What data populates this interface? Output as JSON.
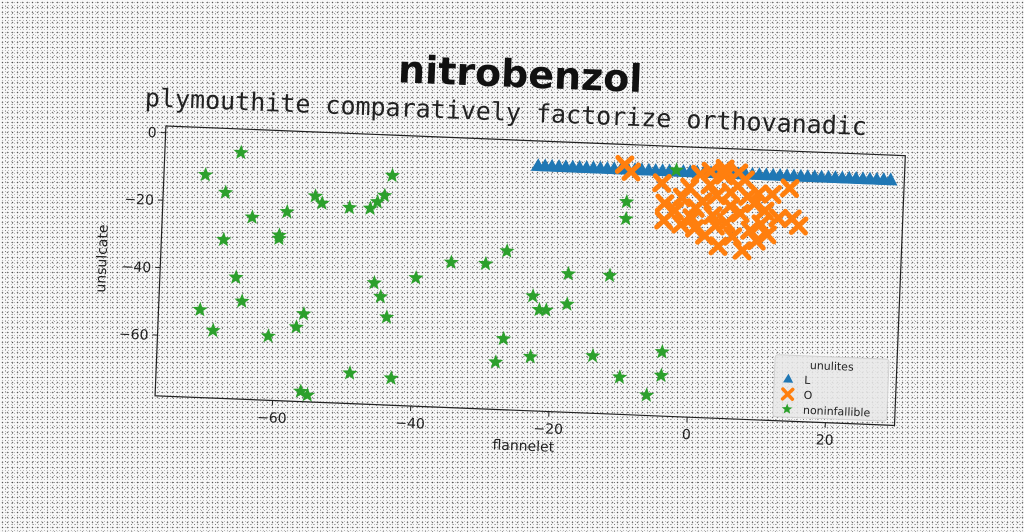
{
  "title": "nitrobenzol",
  "subtitle": "plymouthite comparatively factorize orthovanadic",
  "chart_data": {
    "type": "scatter",
    "xlabel": "flannelet",
    "ylabel": "unsulcate",
    "xlim": [
      -77,
      30
    ],
    "ylim": [
      -78,
      2
    ],
    "xticks": [
      -60,
      -40,
      -20,
      0,
      20
    ],
    "yticks": [
      0,
      -20,
      -40,
      -60
    ],
    "grid": false,
    "legend": {
      "title": "unulites",
      "position": "lower-right"
    },
    "series": [
      {
        "name": "L",
        "marker": "triangle",
        "color": "#1f77b4",
        "points": [
          [
            -23,
            -5.5
          ],
          [
            -22,
            -5.5
          ],
          [
            -21,
            -5.5
          ],
          [
            -20,
            -5.5
          ],
          [
            -19,
            -5.5
          ],
          [
            -18,
            -5.5
          ],
          [
            -17,
            -5.5
          ],
          [
            -16,
            -5.5
          ],
          [
            -15,
            -5.5
          ],
          [
            -14,
            -5.5
          ],
          [
            -13,
            -5.5
          ],
          [
            -12,
            -5.5
          ],
          [
            -11,
            -5.5
          ],
          [
            -10,
            -5.5
          ],
          [
            -9,
            -5.5
          ],
          [
            -8,
            -5.5
          ],
          [
            -7,
            -5.5
          ],
          [
            -6,
            -5.5
          ],
          [
            -5,
            -5.5
          ],
          [
            -4,
            -5.5
          ],
          [
            -3,
            -5.5
          ],
          [
            -2,
            -5.5
          ],
          [
            -1,
            -5.5
          ],
          [
            0,
            -5.5
          ],
          [
            1,
            -5.5
          ],
          [
            2,
            -5.5
          ],
          [
            3,
            -5.5
          ],
          [
            4,
            -5.5
          ],
          [
            5,
            -5.5
          ],
          [
            6,
            -5.5
          ],
          [
            7,
            -5.5
          ],
          [
            8,
            -5.5
          ],
          [
            9,
            -5.5
          ],
          [
            10,
            -5.5
          ],
          [
            11,
            -5.5
          ],
          [
            12,
            -5.5
          ],
          [
            13,
            -5.5
          ],
          [
            14,
            -5.5
          ],
          [
            15,
            -5.5
          ],
          [
            16,
            -5.5
          ],
          [
            17,
            -5.5
          ],
          [
            18,
            -5.5
          ],
          [
            19,
            -5.5
          ],
          [
            20,
            -5.5
          ],
          [
            21,
            -5.5
          ],
          [
            22,
            -5.5
          ],
          [
            23,
            -5.5
          ],
          [
            24,
            -5.5
          ],
          [
            25,
            -5.5
          ],
          [
            26,
            -5.5
          ],
          [
            27,
            -5.5
          ],
          [
            28,
            -5.5
          ]
        ]
      },
      {
        "name": "O",
        "marker": "x",
        "color": "#ff7f0e",
        "points": [
          [
            -10.5,
            -4
          ],
          [
            -9.5,
            -6
          ],
          [
            -5,
            -9
          ],
          [
            -4.5,
            -15
          ],
          [
            -4.5,
            -20
          ],
          [
            -3,
            -17
          ],
          [
            -2,
            -13
          ],
          [
            -1,
            -10
          ],
          [
            -0.5,
            -19
          ],
          [
            0,
            -22
          ],
          [
            0.5,
            -6
          ],
          [
            1,
            -14
          ],
          [
            1.5,
            -24
          ],
          [
            2,
            -9
          ],
          [
            2.5,
            -18
          ],
          [
            3,
            -12
          ],
          [
            3.5,
            -27
          ],
          [
            4,
            -6
          ],
          [
            4.5,
            -20
          ],
          [
            5,
            -15
          ],
          [
            5.5,
            -24
          ],
          [
            6,
            -9
          ],
          [
            6.5,
            -17
          ],
          [
            7,
            -28
          ],
          [
            7.5,
            -12
          ],
          [
            8,
            -22
          ],
          [
            8.5,
            -14
          ],
          [
            9,
            -25
          ],
          [
            9.5,
            -20
          ],
          [
            10,
            -16
          ],
          [
            10.5,
            -23
          ],
          [
            11,
            -11
          ],
          [
            12,
            -18
          ],
          [
            13.5,
            -9
          ],
          [
            14,
            -18
          ],
          [
            15,
            -20
          ],
          [
            2,
            -5
          ],
          [
            4,
            -4
          ],
          [
            6,
            -5
          ],
          [
            0,
            -16
          ],
          [
            3,
            -21
          ],
          [
            5,
            -11
          ],
          [
            7,
            -7
          ],
          [
            -2,
            -21
          ],
          [
            9,
            -11
          ]
        ]
      },
      {
        "name": "noninfallible",
        "marker": "star",
        "color": "#2ca02c",
        "points": [
          [
            -71,
            -12
          ],
          [
            -66,
            -5
          ],
          [
            -68,
            -17
          ],
          [
            -64,
            -24
          ],
          [
            -68,
            -31
          ],
          [
            -66,
            -42
          ],
          [
            -65,
            -49
          ],
          [
            -60,
            -30
          ],
          [
            -60,
            -29
          ],
          [
            -59,
            -22
          ],
          [
            -71,
            -52
          ],
          [
            -69,
            -58
          ],
          [
            -61,
            -59
          ],
          [
            -57,
            -56
          ],
          [
            -56,
            -52
          ],
          [
            -55,
            -17
          ],
          [
            -54,
            -19
          ],
          [
            -50,
            -20
          ],
          [
            -47,
            -20
          ],
          [
            -46,
            -18
          ],
          [
            -45,
            -16
          ],
          [
            -44,
            -10
          ],
          [
            -46,
            -42
          ],
          [
            -45,
            -46
          ],
          [
            -44,
            -52
          ],
          [
            -40,
            -40
          ],
          [
            -35,
            -35
          ],
          [
            -30,
            -35
          ],
          [
            -27,
            -31
          ],
          [
            -27,
            -57
          ],
          [
            -23,
            -44
          ],
          [
            -22,
            -48
          ],
          [
            -21,
            -48
          ],
          [
            -18,
            -46
          ],
          [
            -23,
            -62
          ],
          [
            -18,
            -37
          ],
          [
            -12,
            -37
          ],
          [
            -10,
            -15
          ],
          [
            -10,
            -20
          ],
          [
            -14,
            -61
          ],
          [
            -28,
            -64
          ],
          [
            -43,
            -70
          ],
          [
            -49,
            -69
          ],
          [
            -56,
            -75
          ],
          [
            -55,
            -76
          ],
          [
            -4,
            -59
          ],
          [
            -6,
            -72
          ],
          [
            -4,
            -66
          ],
          [
            -10,
            -67
          ],
          [
            -3,
            -5
          ]
        ]
      }
    ]
  }
}
